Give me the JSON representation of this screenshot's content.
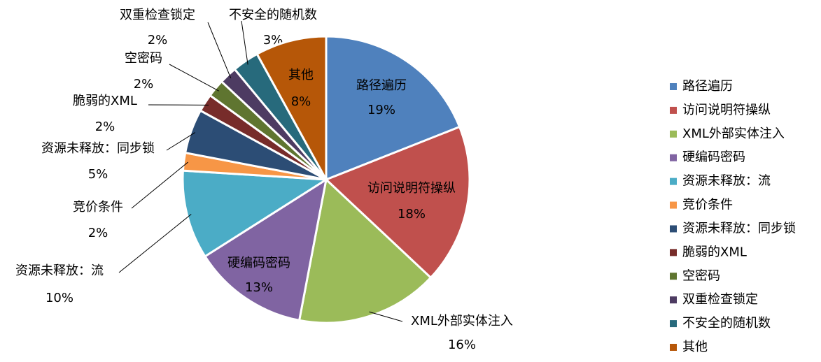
{
  "chart_data": {
    "type": "pie",
    "categories": [
      "路径遍历",
      "访问说明符操纵",
      "XML外部实体注入",
      "硬编码密码",
      "资源未释放：流",
      "竞价条件",
      "资源未释放：同步锁",
      "脆弱的XML",
      "空密码",
      "双重检查锁定",
      "不安全的随机数",
      "其他"
    ],
    "values": [
      19,
      18,
      16,
      13,
      10,
      2,
      5,
      2,
      2,
      2,
      3,
      8
    ],
    "value_labels": [
      "19%",
      "18%",
      "16%",
      "13%",
      "10%",
      "2%",
      "5%",
      "2%",
      "2%",
      "2%",
      "3%",
      "8%"
    ],
    "colors": [
      "#4f81bd",
      "#c0504d",
      "#9bbb59",
      "#8064a2",
      "#4bacc6",
      "#f79646",
      "#2c4d75",
      "#772c2a",
      "#5f7530",
      "#4d3b62",
      "#276a7c",
      "#b65708"
    ],
    "legend": "right"
  }
}
